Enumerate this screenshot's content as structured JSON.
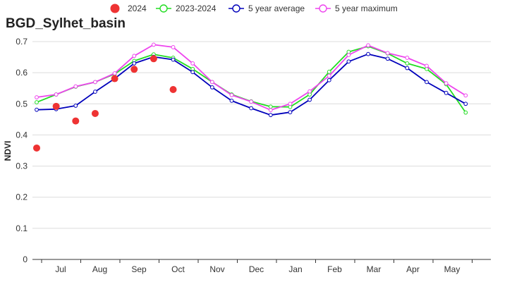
{
  "chart_data": {
    "type": "line",
    "title": "BGD_Sylhet_basin",
    "xlabel": "",
    "ylabel": "NDVI",
    "ylim": [
      0,
      0.7
    ],
    "yticks": [
      "0",
      "0.1",
      "0.2",
      "0.3",
      "0.4",
      "0.5",
      "0.6",
      "0.7"
    ],
    "grid": "horizontal",
    "legend_position": "top",
    "month_labels": [
      "Jul",
      "Aug",
      "Sep",
      "Oct",
      "Nov",
      "Dec",
      "Jan",
      "Feb",
      "Mar",
      "Apr",
      "May"
    ],
    "x": [
      "Jun 2",
      "Jul 1",
      "Jul 2",
      "Aug 1",
      "Aug 2",
      "Sep 1",
      "Sep 2",
      "Oct 1",
      "Oct 2",
      "Nov 1",
      "Nov 2",
      "Dec 1",
      "Dec 2",
      "Jan 1",
      "Jan 2",
      "Feb 1",
      "Feb 2",
      "Mar 1",
      "Mar 2",
      "Apr 1",
      "Apr 2",
      "May 1",
      "May 2",
      "Jun 1"
    ],
    "series": [
      {
        "name": "2024",
        "style": "dots",
        "color": "#ee3333",
        "values": [
          0.358,
          0.492,
          0.445,
          0.469,
          0.581,
          0.611,
          0.645,
          0.546,
          null,
          null,
          null,
          null,
          null,
          null,
          null,
          null,
          null,
          null,
          null,
          null,
          null,
          null,
          null,
          null
        ]
      },
      {
        "name": "2023-2024",
        "style": "line",
        "color": "#22dd22",
        "values": [
          0.505,
          0.53,
          0.555,
          0.57,
          0.596,
          0.638,
          0.659,
          0.648,
          0.612,
          0.57,
          0.53,
          0.508,
          0.491,
          0.49,
          0.53,
          0.603,
          0.667,
          0.685,
          0.662,
          0.63,
          0.612,
          0.563,
          0.472,
          null
        ]
      },
      {
        "name": "5 year average",
        "style": "line",
        "color": "#0000bb",
        "values": [
          0.481,
          0.483,
          0.494,
          0.539,
          0.581,
          0.63,
          0.651,
          0.642,
          0.602,
          0.553,
          0.51,
          0.486,
          0.464,
          0.473,
          0.513,
          0.576,
          0.636,
          0.66,
          0.645,
          0.615,
          0.57,
          0.535,
          0.5,
          null
        ]
      },
      {
        "name": "5 year maximum",
        "style": "line",
        "color": "#ee44ee",
        "values": [
          0.521,
          0.53,
          0.556,
          0.57,
          0.598,
          0.654,
          0.69,
          0.682,
          0.63,
          0.57,
          0.528,
          0.507,
          0.48,
          0.5,
          0.54,
          0.59,
          0.657,
          0.688,
          0.663,
          0.648,
          0.622,
          0.566,
          0.527,
          null
        ]
      }
    ]
  }
}
